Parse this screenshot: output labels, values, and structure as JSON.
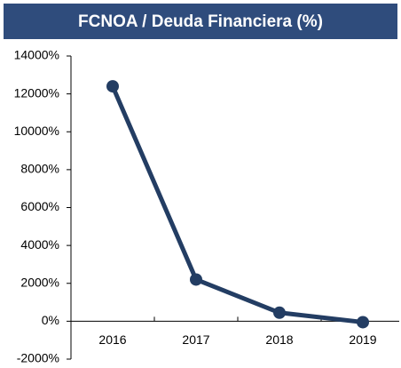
{
  "chart_data": {
    "type": "line",
    "title": "FCNOA / Deuda Financiera (%)",
    "categories": [
      "2016",
      "2017",
      "2018",
      "2019"
    ],
    "series": [
      {
        "name": "FCNOA / Deuda Financiera",
        "color": "#233d63",
        "values": [
          12400,
          2200,
          450,
          -50
        ]
      }
    ],
    "ylim": [
      -2000,
      14000
    ],
    "yticks": [
      {
        "value": -2000,
        "label": "-2000%"
      },
      {
        "value": 0,
        "label": "0%"
      },
      {
        "value": 2000,
        "label": "2000%"
      },
      {
        "value": 4000,
        "label": "4000%"
      },
      {
        "value": 6000,
        "label": "6000%"
      },
      {
        "value": 8000,
        "label": "8000%"
      },
      {
        "value": 10000,
        "label": "10000%"
      },
      {
        "value": 12000,
        "label": "12000%"
      },
      {
        "value": 14000,
        "label": "14000%"
      }
    ],
    "title_color": "#2f4c7c"
  }
}
